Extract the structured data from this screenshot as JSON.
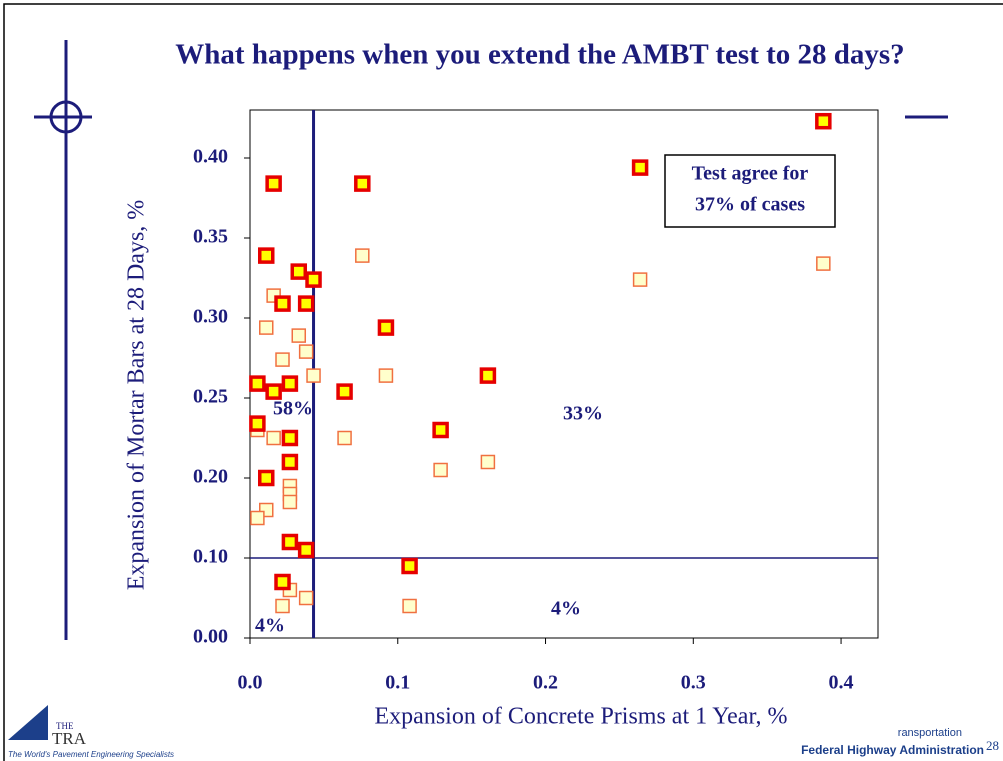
{
  "chart_data": {
    "type": "scatter",
    "title": "What happens when you extend the AMBT test to 28 days?",
    "xlabel": "Expansion of Concrete Prisms at 1 Year, %",
    "ylabel": "Expansion of Mortar Bars at 28 Days, %",
    "xlim": [
      0,
      0.425
    ],
    "xticks": [
      {
        "value": 0,
        "label": "0.0"
      },
      0.1,
      0.2,
      0.3,
      0.4
    ],
    "ylim": [
      0,
      0.43
    ],
    "yticks": [
      {
        "value": 0,
        "label": "0.00"
      },
      {
        "value": 0.1,
        "label": "0.10"
      },
      {
        "value": 0.2,
        "label": "0.20"
      },
      0.25,
      {
        "value": 0.3,
        "label": "0.30"
      },
      0.35,
      {
        "value": 0.4,
        "label": "0.40"
      }
    ],
    "thresholds": {
      "x": 0.043,
      "y": 0.1
    },
    "annotations": [
      "58%",
      "33%",
      "4%",
      "4%"
    ],
    "box": [
      "Test agree for",
      "37% of cases"
    ],
    "series": [
      {
        "color": "#e60000",
        "fill": "#ffff00",
        "x": [
          0.016,
          0.076,
          0.011,
          0.033,
          0.043,
          0.022,
          0.038,
          0.092,
          0.005,
          0.027,
          0.016,
          0.064,
          0.161,
          0.005,
          0.027,
          0.129,
          0.027,
          0.011,
          0.027,
          0.038,
          0.108,
          0.022,
          0.264,
          0.388
        ],
        "y": [
          0.384,
          0.384,
          0.339,
          0.329,
          0.324,
          0.309,
          0.309,
          0.294,
          0.259,
          0.259,
          0.254,
          0.254,
          0.264,
          0.234,
          0.225,
          0.23,
          0.21,
          0.2,
          0.12,
          0.11,
          0.09,
          0.07,
          0.394,
          0.423
        ]
      },
      {
        "color": "#f07040",
        "fill": "#ffffcc",
        "x": [
          0.016,
          0.011,
          0.033,
          0.038,
          0.022,
          0.043,
          0.076,
          0.092,
          0.064,
          0.016,
          0.005,
          0.027,
          0.027,
          0.027,
          0.011,
          0.005,
          0.129,
          0.161,
          0.264,
          0.388,
          0.027,
          0.022,
          0.038,
          0.108
        ],
        "y": [
          0.314,
          0.294,
          0.289,
          0.279,
          0.274,
          0.264,
          0.339,
          0.264,
          0.225,
          0.225,
          0.23,
          0.19,
          0.18,
          0.17,
          0.16,
          0.15,
          0.205,
          0.21,
          0.324,
          0.334,
          0.06,
          0.04,
          0.05,
          0.04
        ]
      }
    ]
  },
  "footer": {
    "logo_top": "THE",
    "logo_main": "TRA",
    "tagline": "The World's Pavement Engineering Specialists",
    "agency_top": "ransportation",
    "agency": "Federal Highway Administration",
    "page": "28"
  }
}
